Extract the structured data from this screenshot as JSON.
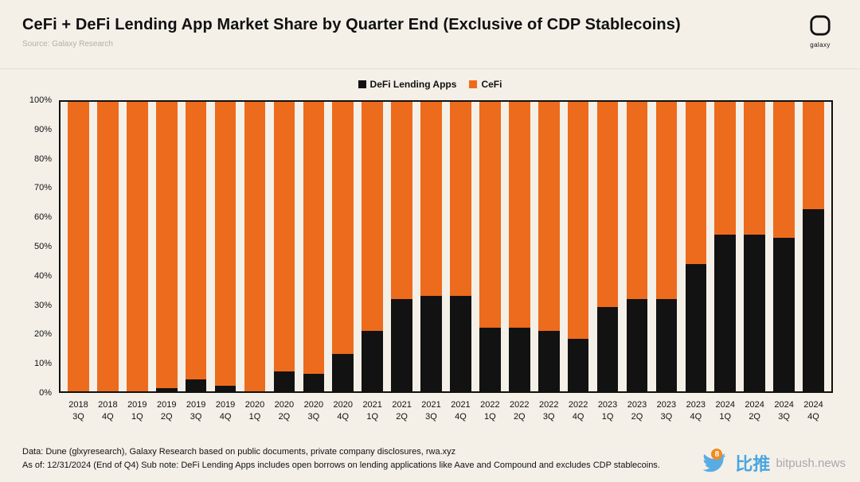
{
  "header": {
    "title": "CeFi + DeFi Lending App Market Share by Quarter End (Exclusive of CDP Stablecoins)",
    "source": "Source: Galaxy Research",
    "logo_text": "galaxy"
  },
  "legend": [
    {
      "label": "DeFi Lending Apps",
      "color": "#121212"
    },
    {
      "label": "CeFi",
      "color": "#ed6b1d"
    }
  ],
  "chart_data": {
    "type": "bar",
    "stacked": true,
    "percent_stack": true,
    "title": "CeFi + DeFi Lending App Market Share by Quarter End (Exclusive of CDP Stablecoins)",
    "xlabel": "",
    "ylabel": "",
    "ylim": [
      0,
      100
    ],
    "grid": false,
    "legend_position": "top-center",
    "y_ticks": [
      "100%",
      "90%",
      "80%",
      "70%",
      "60%",
      "50%",
      "40%",
      "30%",
      "20%",
      "10%",
      "0%"
    ],
    "categories": [
      "2018 3Q",
      "2018 4Q",
      "2019 1Q",
      "2019 2Q",
      "2019 3Q",
      "2019 4Q",
      "2020 1Q",
      "2020 2Q",
      "2020 3Q",
      "2020 4Q",
      "2021 1Q",
      "2021 2Q",
      "2021 3Q",
      "2021 4Q",
      "2022 1Q",
      "2022 2Q",
      "2022 3Q",
      "2022 4Q",
      "2023 1Q",
      "2023 2Q",
      "2023 3Q",
      "2023 4Q",
      "2024 1Q",
      "2024 2Q",
      "2024 3Q",
      "2024 4Q"
    ],
    "series": [
      {
        "name": "DeFi Lending Apps",
        "color": "#121212",
        "values": [
          0,
          0,
          0,
          1,
          4,
          2,
          0,
          7,
          6,
          13,
          21,
          32,
          33,
          33,
          22,
          22,
          21,
          18,
          29,
          32,
          32,
          44,
          54,
          54,
          53,
          63
        ]
      },
      {
        "name": "CeFi",
        "color": "#ed6b1d",
        "values": [
          100,
          100,
          100,
          99,
          96,
          98,
          100,
          93,
          94,
          87,
          79,
          68,
          67,
          67,
          78,
          78,
          79,
          82,
          71,
          68,
          68,
          56,
          46,
          46,
          47,
          37
        ]
      }
    ]
  },
  "footer": {
    "line1": "Data: Dune (glxyresearch), Galaxy Research based on public documents, private company disclosures, rwa.xyz",
    "line2": "As of: 12/31/2024 (End of Q4)  Sub note: DeFi Lending Apps includes open borrows on lending applications like Aave and Compound and excludes CDP stablecoins."
  },
  "watermark": {
    "badge": "8",
    "cn": "比推",
    "en": "bitpush.news"
  }
}
